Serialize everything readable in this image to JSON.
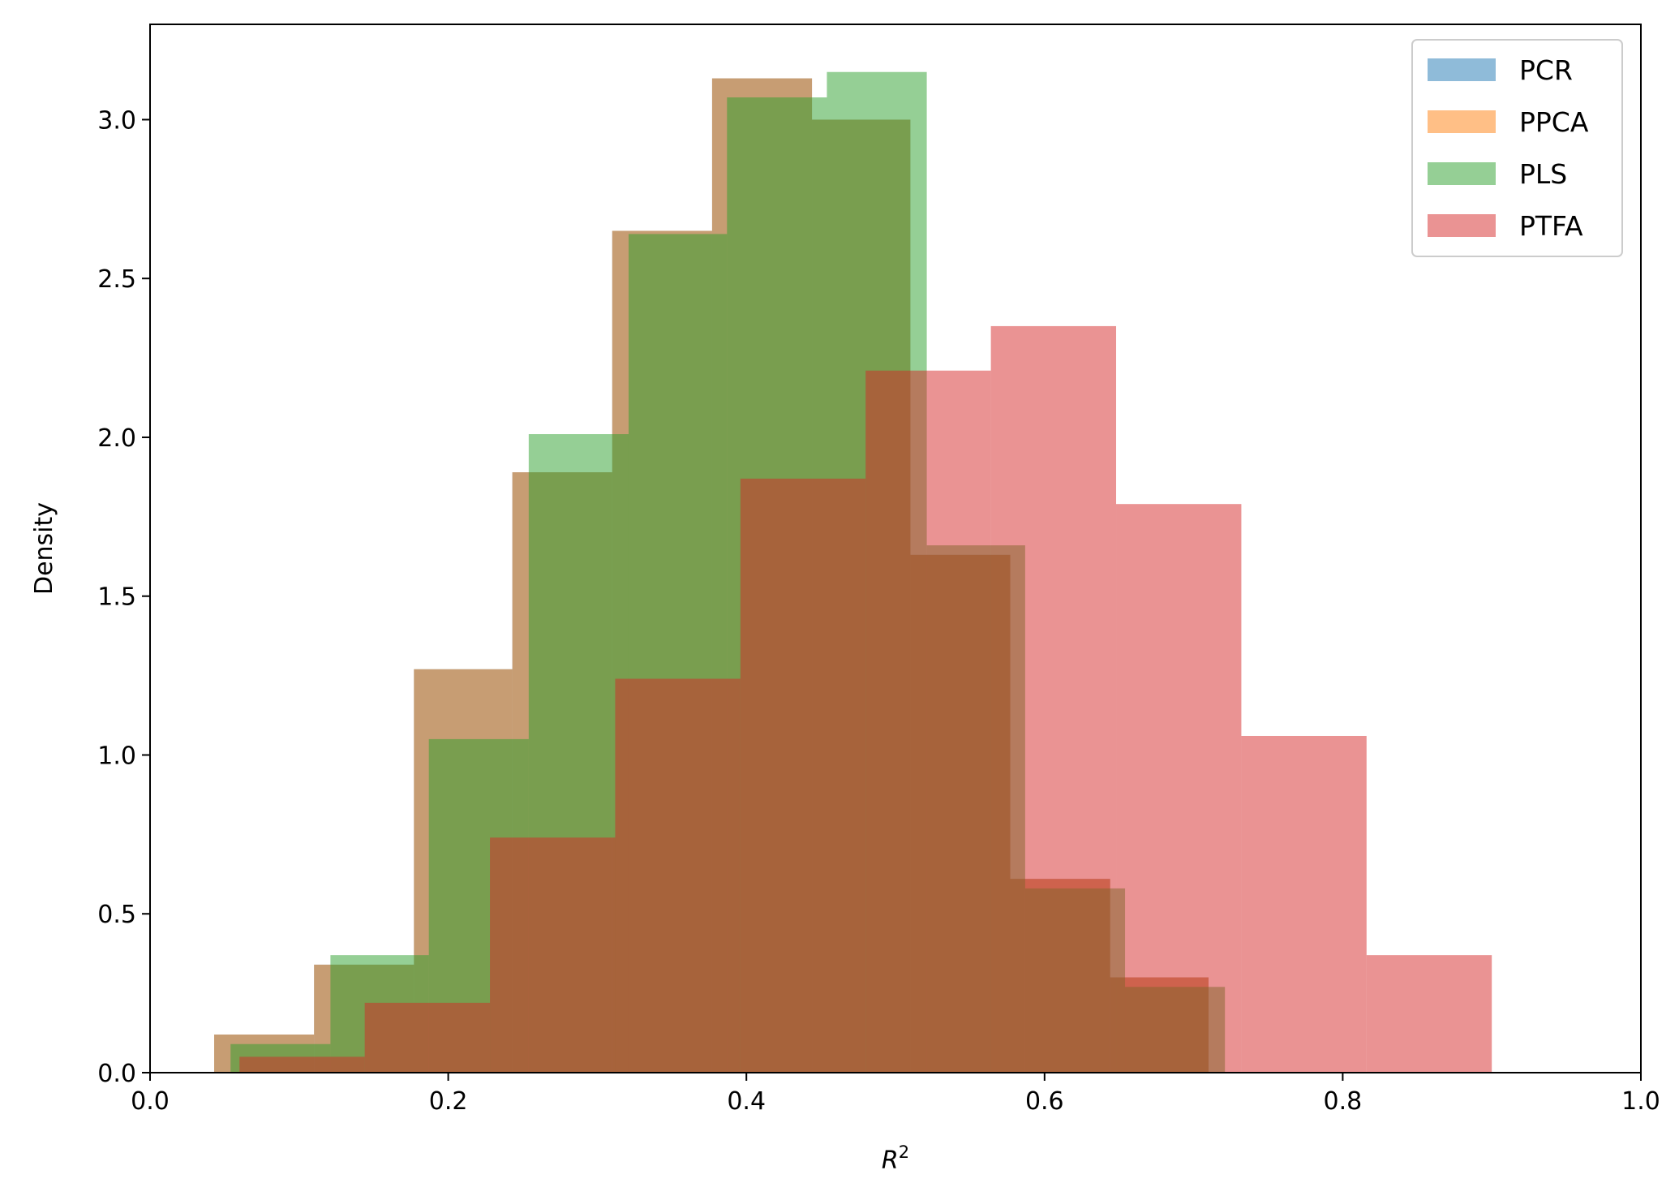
{
  "chart_data": {
    "type": "histogram",
    "xlabel": "R",
    "xlabel_superscript": "2",
    "ylabel": "Density",
    "xlim": [
      0.0,
      1.0
    ],
    "ylim": [
      0.0,
      3.3
    ],
    "grid": false,
    "legend": {
      "position": "top-right"
    },
    "x_ticks": [
      "0.0",
      "0.2",
      "0.4",
      "0.6",
      "0.8",
      "1.0"
    ],
    "y_ticks": [
      "0.0",
      "0.5",
      "1.0",
      "1.5",
      "2.0",
      "2.5",
      "3.0"
    ],
    "x_tick_values": [
      0.0,
      0.2,
      0.4,
      0.6,
      0.8,
      1.0
    ],
    "y_tick_values": [
      0.0,
      0.5,
      1.0,
      1.5,
      2.0,
      2.5,
      3.0
    ],
    "series": [
      {
        "name": "PCR",
        "color": "#1f77b4",
        "opacity": 0.5,
        "edges": [
          0.043,
          0.11,
          0.177,
          0.243,
          0.31,
          0.377,
          0.444,
          0.51,
          0.577,
          0.644,
          0.71,
          0.777
        ],
        "values": [
          0.12,
          0.34,
          1.27,
          1.89,
          2.65,
          3.13,
          3.0,
          1.63,
          0.61,
          0.3,
          0.0
        ]
      },
      {
        "name": "PPCA",
        "color": "#ff7f0e",
        "opacity": 0.5,
        "edges": [
          0.043,
          0.11,
          0.177,
          0.243,
          0.31,
          0.377,
          0.444,
          0.51,
          0.577,
          0.644,
          0.71,
          0.777
        ],
        "values": [
          0.12,
          0.34,
          1.27,
          1.89,
          2.65,
          3.13,
          3.0,
          1.63,
          0.61,
          0.3,
          0.0
        ]
      },
      {
        "name": "PLS",
        "color": "#2ca02c",
        "opacity": 0.5,
        "edges": [
          0.054,
          0.121,
          0.187,
          0.254,
          0.321,
          0.387,
          0.454,
          0.521,
          0.587,
          0.654,
          0.721
        ],
        "values": [
          0.09,
          0.37,
          1.05,
          2.01,
          2.64,
          3.07,
          3.15,
          1.66,
          0.58,
          0.27
        ]
      },
      {
        "name": "PTFA",
        "color": "#d62728",
        "opacity": 0.5,
        "edges": [
          0.06,
          0.144,
          0.228,
          0.312,
          0.396,
          0.48,
          0.564,
          0.648,
          0.732,
          0.816,
          0.9
        ],
        "values": [
          0.05,
          0.22,
          0.74,
          1.24,
          1.87,
          2.21,
          2.35,
          1.79,
          1.06,
          0.37
        ]
      }
    ]
  }
}
